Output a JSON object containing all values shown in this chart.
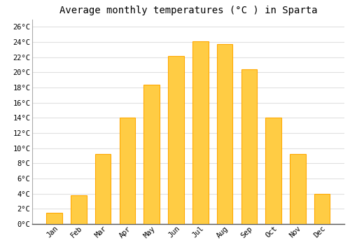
{
  "months": [
    "Jan",
    "Feb",
    "Mar",
    "Apr",
    "May",
    "Jun",
    "Jul",
    "Aug",
    "Sep",
    "Oct",
    "Nov",
    "Dec"
  ],
  "values": [
    1.5,
    3.8,
    9.2,
    14.0,
    18.4,
    22.2,
    24.1,
    23.7,
    20.4,
    14.0,
    9.2,
    4.0
  ],
  "bar_color_top": "#FFCC44",
  "bar_color_bottom": "#FFB020",
  "bar_edge_color": "#FFA800",
  "title": "Average monthly temperatures (°C ) in Sparta",
  "ylim": [
    0,
    27
  ],
  "yticks": [
    0,
    2,
    4,
    6,
    8,
    10,
    12,
    14,
    16,
    18,
    20,
    22,
    24,
    26
  ],
  "ytick_labels": [
    "0°C",
    "2°C",
    "4°C",
    "6°C",
    "8°C",
    "10°C",
    "12°C",
    "14°C",
    "16°C",
    "18°C",
    "20°C",
    "22°C",
    "24°C",
    "26°C"
  ],
  "background_color": "#ffffff",
  "grid_color": "#e0e0e0",
  "title_fontsize": 10,
  "tick_fontsize": 7.5,
  "font_family": "monospace",
  "bar_width": 0.65
}
